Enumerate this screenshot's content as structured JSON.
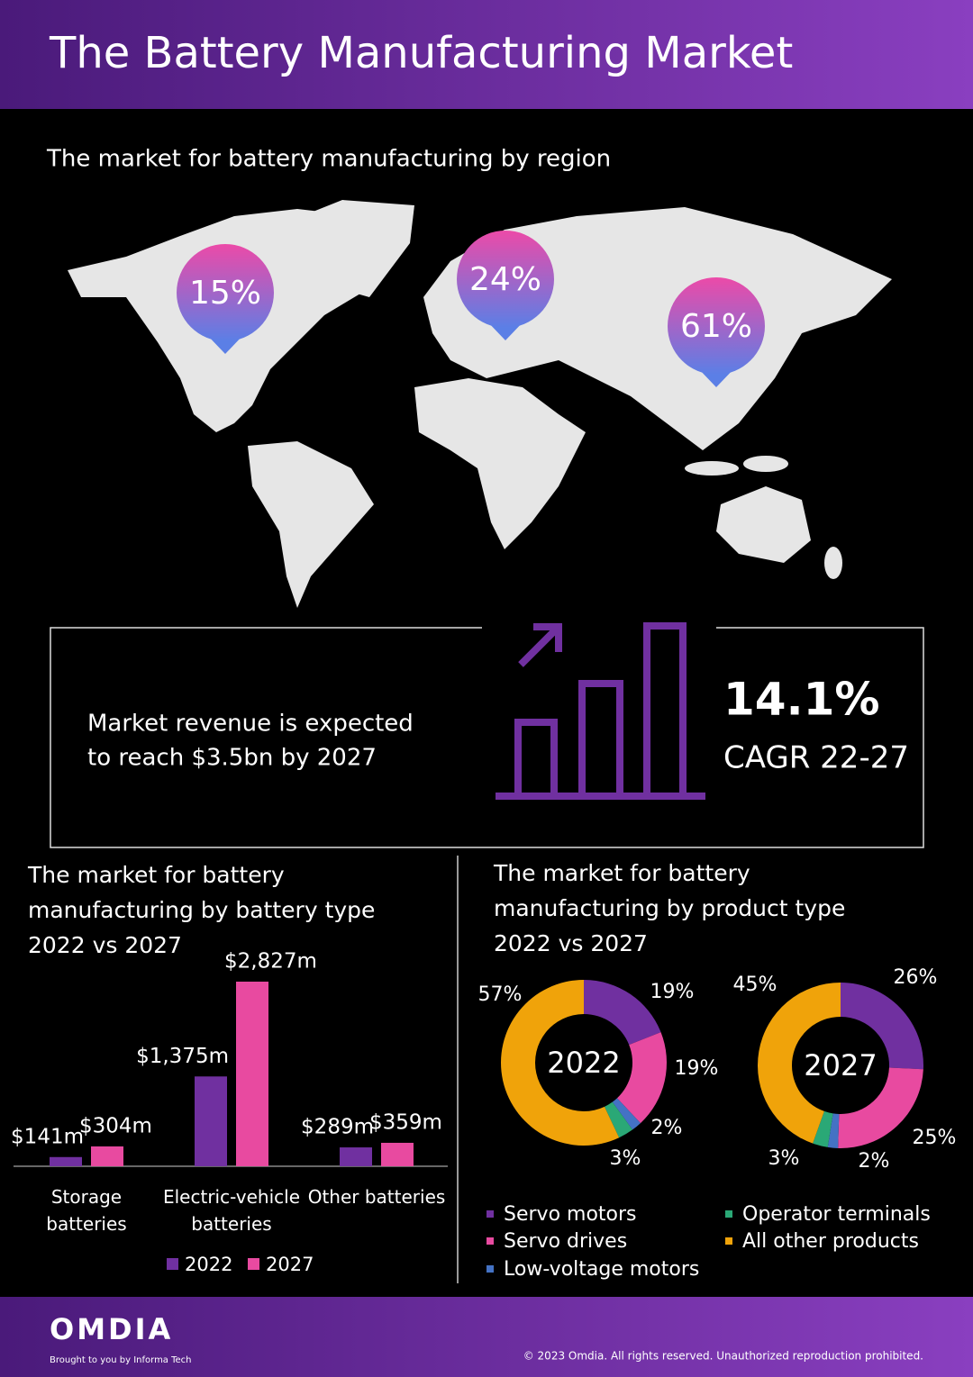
{
  "header": {
    "title": "The Battery Manufacturing Market"
  },
  "map": {
    "title": "The market for battery manufacturing by region",
    "pins": [
      "15%",
      "24%",
      "61%"
    ]
  },
  "kpi": {
    "text": [
      "Market revenue is expected",
      "to reach $3.5bn by 2027"
    ],
    "value": "14.1%",
    "label": "CAGR 22-27"
  },
  "chart_data": [
    {
      "type": "bar",
      "title": "The market for battery manufacturing by battery type 2022 vs 2027",
      "categories": [
        "Storage batteries",
        "Electric-vehicle batteries",
        "Other batteries"
      ],
      "series": [
        {
          "name": "2022",
          "color": "#7030a0",
          "values": [
            141,
            1375,
            289
          ],
          "value_labels": [
            "$141m",
            "$1,375m",
            "$289m"
          ]
        },
        {
          "name": "2027",
          "color": "#e84aa0",
          "values": [
            304,
            2827,
            359
          ],
          "value_labels": [
            "$304m",
            "$2,827m",
            "$359m"
          ]
        }
      ]
    },
    {
      "type": "donut",
      "title": "The market for battery manufacturing by product type 2022 vs 2027",
      "categories": [
        "Servo motors",
        "Servo drives",
        "Low-voltage motors",
        "Operator terminals",
        "All other products"
      ],
      "colors": [
        "#7030a0",
        "#e84aa0",
        "#4472c4",
        "#2aa876",
        "#f0a30a"
      ],
      "series": [
        {
          "name": "2022",
          "values": [
            19,
            19,
            2,
            3,
            57
          ],
          "value_labels": [
            "19%",
            "19%",
            "2%",
            "3%",
            "57%"
          ]
        },
        {
          "name": "2027",
          "values": [
            26,
            25,
            2,
            3,
            45
          ],
          "value_labels": [
            "26%",
            "25%",
            "2%",
            "3%",
            "45%"
          ]
        }
      ]
    }
  ],
  "footer": {
    "brand": "OMDIA",
    "tagline": "Brought to you by Informa Tech",
    "copyright": "© 2023 Omdia. All rights reserved. Unauthorized reproduction prohibited."
  }
}
